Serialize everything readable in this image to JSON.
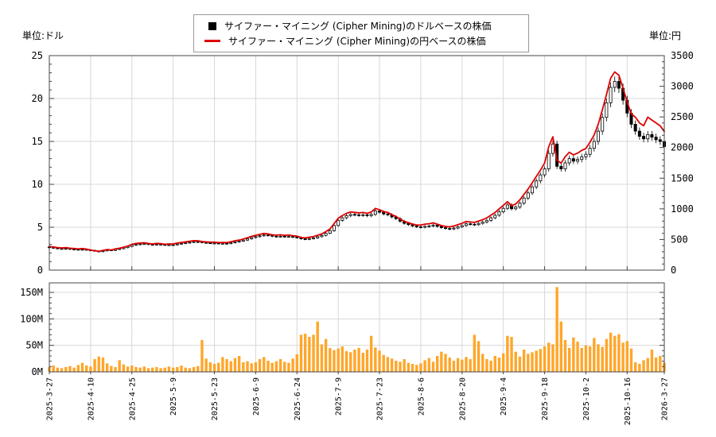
{
  "axes": {
    "left_unit": "単位:ドル",
    "right_unit": "単位:円",
    "left_ticks": [
      0,
      5,
      10,
      15,
      20,
      25
    ],
    "right_ticks": [
      0,
      500,
      1000,
      1500,
      2000,
      2500,
      3000,
      3500
    ],
    "volume_tick_labels": [
      "0M",
      "50M",
      "100M",
      "150M"
    ]
  },
  "legend": {
    "items": [
      {
        "marker": "black-square",
        "color": "#000000",
        "label": "サイファー・マイニング (Cipher Mining)のドルベースの株価"
      },
      {
        "marker": "red-line",
        "color": "#dd0000",
        "label": "サイファー・マイニング (Cipher Mining)の円ベースの株価"
      }
    ]
  },
  "chart_data": {
    "type": "candlestick+line+bar",
    "title": "",
    "x_tick_labels": [
      "2025-3-27",
      "2025-4-10",
      "2025-4-25",
      "2025-5-9",
      "2025-5-23",
      "2025-6-9",
      "2025-6-24",
      "2025-7-9",
      "2025-7-23",
      "2025-8-6",
      "2025-8-20",
      "2025-9-4",
      "2025-9-18",
      "2025-10-2",
      "2025-10-16",
      "2026-3-27"
    ],
    "x_tick_indices": [
      0,
      10,
      20,
      30,
      40,
      50,
      60,
      70,
      80,
      90,
      100,
      110,
      120,
      130,
      140,
      149
    ],
    "left_axis": {
      "unit": "ドル",
      "range": [
        0,
        25
      ],
      "major": 5,
      "minor": 1
    },
    "right_axis": {
      "unit": "円",
      "range": [
        0,
        3500
      ],
      "major": 500,
      "minor": 100
    },
    "volume_axis": {
      "unit": "M",
      "range": [
        0,
        168
      ],
      "major": 50,
      "minor": 10,
      "labels": [
        "0M",
        "50M",
        "100M",
        "150M"
      ]
    },
    "grid": true,
    "legend_position": "top-center",
    "series": [
      {
        "name": "サイファー・マイニング (Cipher Mining)のドルベースの株価",
        "type": "candlestick",
        "axis": "left",
        "up_color": "#ffffff",
        "down_color": "#000000",
        "close_usd": [
          2.65,
          2.58,
          2.52,
          2.48,
          2.52,
          2.45,
          2.42,
          2.38,
          2.42,
          2.35,
          2.3,
          2.22,
          2.15,
          2.25,
          2.35,
          2.3,
          2.42,
          2.5,
          2.62,
          2.75,
          2.9,
          3.0,
          3.05,
          3.08,
          3.0,
          2.95,
          3.02,
          2.98,
          2.92,
          2.95,
          2.95,
          3.05,
          3.12,
          3.18,
          3.25,
          3.32,
          3.3,
          3.22,
          3.18,
          3.15,
          3.15,
          3.1,
          3.12,
          3.1,
          3.2,
          3.3,
          3.38,
          3.5,
          3.65,
          3.8,
          3.9,
          4.0,
          4.1,
          4.05,
          3.95,
          3.92,
          3.95,
          3.9,
          3.92,
          3.85,
          3.8,
          3.65,
          3.6,
          3.68,
          3.75,
          3.9,
          4.05,
          4.3,
          4.6,
          5.2,
          5.8,
          6.1,
          6.35,
          6.5,
          6.45,
          6.4,
          6.45,
          6.35,
          6.5,
          6.9,
          6.75,
          6.55,
          6.45,
          6.2,
          6.0,
          5.7,
          5.45,
          5.3,
          5.15,
          5.05,
          5.0,
          5.1,
          5.15,
          5.25,
          5.1,
          4.95,
          4.85,
          4.8,
          4.9,
          5.05,
          5.2,
          5.4,
          5.35,
          5.3,
          5.45,
          5.6,
          5.8,
          6.1,
          6.4,
          6.8,
          7.2,
          7.6,
          7.15,
          7.35,
          7.8,
          8.4,
          9.0,
          9.7,
          10.4,
          11.1,
          11.8,
          13.6,
          14.7,
          12.1,
          11.8,
          12.5,
          13.0,
          12.7,
          12.9,
          13.2,
          13.5,
          14.2,
          15.0,
          16.2,
          17.8,
          19.5,
          21.3,
          22.0,
          21.2,
          19.8,
          18.3,
          17.0,
          16.2,
          15.6,
          15.3,
          15.8,
          15.5,
          15.2,
          15.0,
          14.4
        ]
      },
      {
        "name": "サイファー・マイニング (Cipher Mining)の円ベースの株価",
        "type": "line",
        "axis": "right",
        "color": "#dd0000",
        "close_jpy": [
          387,
          377,
          368,
          362,
          368,
          358,
          353,
          347,
          353,
          343,
          329,
          317,
          307,
          322,
          336,
          329,
          346,
          358,
          375,
          393,
          421,
          435,
          442,
          447,
          435,
          428,
          438,
          432,
          423,
          428,
          428,
          442,
          452,
          461,
          471,
          481,
          479,
          467,
          461,
          457,
          457,
          450,
          452,
          450,
          464,
          479,
          490,
          508,
          529,
          551,
          569,
          584,
          599,
          591,
          577,
          572,
          577,
          569,
          572,
          562,
          555,
          533,
          526,
          537,
          548,
          569,
          591,
          628,
          672,
          759,
          847,
          891,
          927,
          949,
          942,
          934,
          942,
          927,
          949,
          1007,
          986,
          956,
          942,
          905,
          876,
          832,
          796,
          774,
          752,
          737,
          735,
          750,
          757,
          772,
          750,
          728,
          713,
          706,
          720,
          742,
          764,
          794,
          786,
          779,
          801,
          823,
          853,
          897,
          941,
          1000,
          1058,
          1117,
          1051,
          1080,
          1147,
          1235,
          1323,
          1426,
          1529,
          1632,
          1746,
          2013,
          2176,
          1791,
          1746,
          1850,
          1924,
          1880,
          1909,
          1954,
          1985,
          2087,
          2205,
          2381,
          2617,
          2867,
          3131,
          3234,
          3180,
          2970,
          2745,
          2550,
          2495,
          2402,
          2356,
          2496,
          2449,
          2402,
          2355,
          2261
        ]
      },
      {
        "name": "出来高",
        "type": "bar",
        "color": "#ffa629",
        "values_millions": [
          9,
          12,
          8,
          7,
          9,
          11,
          8,
          13,
          17,
          12,
          10,
          24,
          29,
          27,
          16,
          11,
          9,
          22,
          14,
          10,
          12,
          9,
          8,
          10,
          7,
          8,
          9,
          7,
          8,
          10,
          8,
          9,
          12,
          8,
          7,
          9,
          11,
          60,
          25,
          18,
          15,
          17,
          28,
          24,
          20,
          26,
          30,
          18,
          20,
          16,
          18,
          24,
          28,
          21,
          17,
          20,
          24,
          19,
          17,
          25,
          33,
          70,
          72,
          66,
          70,
          95,
          52,
          62,
          45,
          41,
          44,
          48,
          39,
          37,
          42,
          45,
          36,
          42,
          68,
          46,
          40,
          32,
          28,
          25,
          21,
          19,
          24,
          17,
          15,
          13,
          16,
          22,
          26,
          19,
          30,
          38,
          34,
          27,
          21,
          26,
          23,
          28,
          24,
          70,
          58,
          34,
          24,
          21,
          30,
          27,
          35,
          68,
          66,
          38,
          29,
          42,
          34,
          37,
          40,
          43,
          48,
          55,
          52,
          160,
          95,
          60,
          45,
          65,
          57,
          45,
          50,
          48,
          64,
          52,
          47,
          62,
          74,
          68,
          71,
          55,
          58,
          44,
          18,
          15,
          22,
          26,
          42,
          27,
          30,
          17
        ]
      }
    ]
  }
}
